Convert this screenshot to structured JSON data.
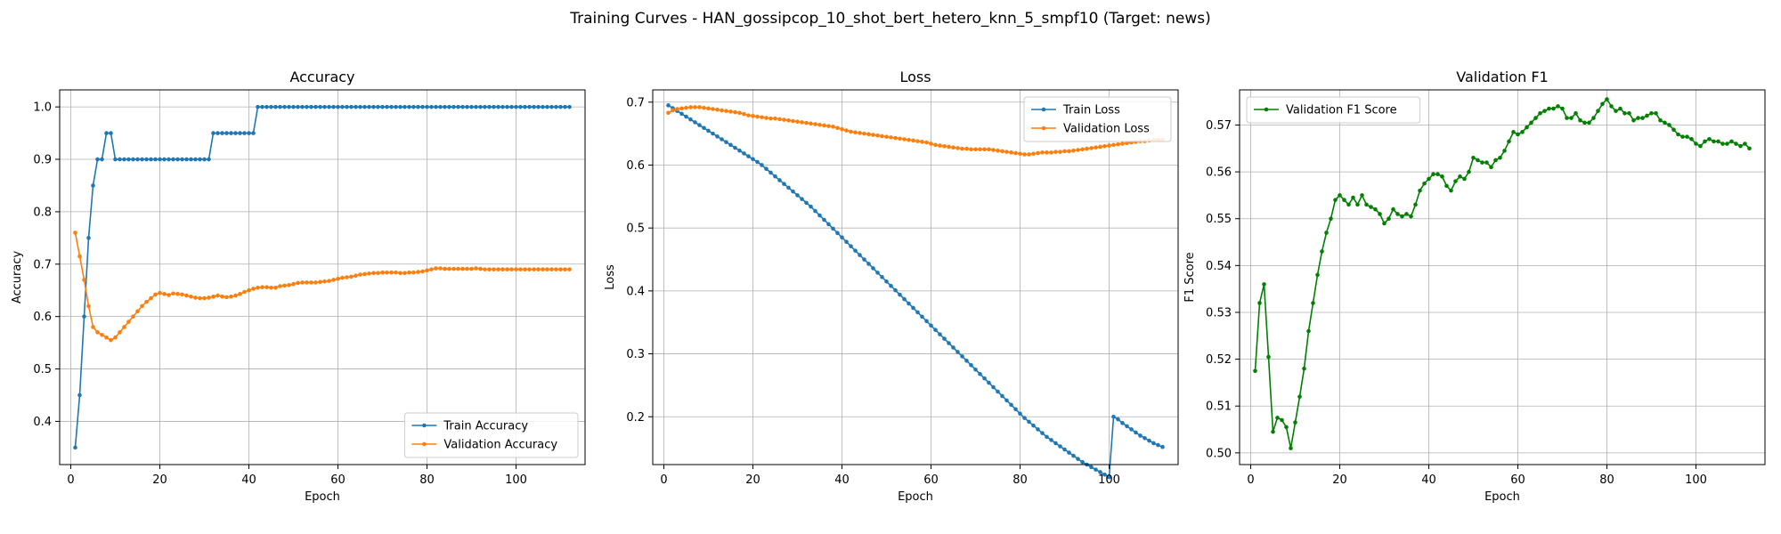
{
  "figure": {
    "suptitle": "Training Curves - HAN_gossipcop_10_shot_bert_hetero_knn_5_smpf10 (Target: news)"
  },
  "chart_data": [
    {
      "type": "line",
      "title": "Accuracy",
      "xlabel": "Epoch",
      "ylabel": "Accuracy",
      "xlim": [
        -2.5,
        115.5
      ],
      "ylim": [
        0.3175,
        1.0325
      ],
      "xticks": [
        0,
        20,
        40,
        60,
        80,
        100
      ],
      "yticks": [
        0.4,
        0.5,
        0.6,
        0.7,
        0.8,
        0.9,
        1.0
      ],
      "ytick_format": "1",
      "grid": true,
      "legend": "lower right",
      "series": [
        {
          "name": "Train Accuracy",
          "color": "#1f77b4",
          "y": [
            0.35,
            0.45,
            0.6,
            0.75,
            0.85,
            0.9,
            0.9,
            0.95,
            0.95,
            0.9,
            0.9,
            0.9,
            0.9,
            0.9,
            0.9,
            0.9,
            0.9,
            0.9,
            0.9,
            0.9,
            0.9,
            0.9,
            0.9,
            0.9,
            0.9,
            0.9,
            0.9,
            0.9,
            0.9,
            0.9,
            0.9,
            0.95,
            0.95,
            0.95,
            0.95,
            0.95,
            0.95,
            0.95,
            0.95,
            0.95,
            0.95,
            1.0,
            1.0,
            1.0,
            1.0,
            1.0,
            1.0,
            1.0,
            1.0,
            1.0,
            1.0,
            1.0,
            1.0,
            1.0,
            1.0,
            1.0,
            1.0,
            1.0,
            1.0,
            1.0,
            1.0,
            1.0,
            1.0,
            1.0,
            1.0,
            1.0,
            1.0,
            1.0,
            1.0,
            1.0,
            1.0,
            1.0,
            1.0,
            1.0,
            1.0,
            1.0,
            1.0,
            1.0,
            1.0,
            1.0,
            1.0,
            1.0,
            1.0,
            1.0,
            1.0,
            1.0,
            1.0,
            1.0,
            1.0,
            1.0,
            1.0,
            1.0,
            1.0,
            1.0,
            1.0,
            1.0,
            1.0,
            1.0,
            1.0,
            1.0,
            1.0,
            1.0,
            1.0,
            1.0,
            1.0,
            1.0,
            1.0,
            1.0,
            1.0,
            1.0,
            1.0,
            1.0
          ]
        },
        {
          "name": "Validation Accuracy",
          "color": "#ff7f0e",
          "y": [
            0.76,
            0.715,
            0.67,
            0.62,
            0.58,
            0.57,
            0.565,
            0.56,
            0.555,
            0.56,
            0.57,
            0.58,
            0.59,
            0.6,
            0.61,
            0.62,
            0.628,
            0.635,
            0.642,
            0.645,
            0.643,
            0.641,
            0.644,
            0.643,
            0.642,
            0.64,
            0.638,
            0.636,
            0.635,
            0.635,
            0.636,
            0.638,
            0.64,
            0.638,
            0.637,
            0.638,
            0.64,
            0.643,
            0.647,
            0.65,
            0.653,
            0.655,
            0.656,
            0.656,
            0.655,
            0.655,
            0.658,
            0.659,
            0.66,
            0.662,
            0.664,
            0.665,
            0.665,
            0.665,
            0.665,
            0.666,
            0.667,
            0.668,
            0.67,
            0.672,
            0.674,
            0.675,
            0.676,
            0.678,
            0.68,
            0.681,
            0.682,
            0.683,
            0.683,
            0.684,
            0.684,
            0.684,
            0.684,
            0.683,
            0.683,
            0.684,
            0.684,
            0.685,
            0.686,
            0.688,
            0.69,
            0.692,
            0.692,
            0.691,
            0.691,
            0.691,
            0.691,
            0.691,
            0.691,
            0.691,
            0.692,
            0.691,
            0.69,
            0.69,
            0.69,
            0.69,
            0.69,
            0.69,
            0.69,
            0.69,
            0.69,
            0.69,
            0.69,
            0.69,
            0.69,
            0.69,
            0.69,
            0.69,
            0.69,
            0.69,
            0.69,
            0.69
          ]
        }
      ]
    },
    {
      "type": "line",
      "title": "Loss",
      "xlabel": "Epoch",
      "ylabel": "Loss",
      "xlim": [
        -2.5,
        115.5
      ],
      "ylim": [
        0.124,
        0.7195
      ],
      "xticks": [
        0,
        20,
        40,
        60,
        80,
        100
      ],
      "yticks": [
        0.2,
        0.3,
        0.4,
        0.5,
        0.6,
        0.7
      ],
      "ytick_format": "1",
      "grid": true,
      "legend": "upper right",
      "series": [
        {
          "name": "Train Loss",
          "color": "#1f77b4",
          "y": [
            0.695,
            0.6905,
            0.686,
            0.6815,
            0.677,
            0.6725,
            0.668,
            0.6635,
            0.659,
            0.6545,
            0.65,
            0.6455,
            0.641,
            0.6365,
            0.632,
            0.6275,
            0.623,
            0.6185,
            0.614,
            0.6095,
            0.605,
            0.6,
            0.594,
            0.588,
            0.582,
            0.576,
            0.57,
            0.564,
            0.558,
            0.552,
            0.546,
            0.54,
            0.534,
            0.527,
            0.52,
            0.513,
            0.506,
            0.499,
            0.492,
            0.485,
            0.478,
            0.471,
            0.464,
            0.457,
            0.45,
            0.443,
            0.436,
            0.429,
            0.422,
            0.415,
            0.408,
            0.401,
            0.394,
            0.387,
            0.38,
            0.373,
            0.366,
            0.359,
            0.352,
            0.345,
            0.338,
            0.331,
            0.324,
            0.317,
            0.31,
            0.303,
            0.296,
            0.289,
            0.282,
            0.275,
            0.268,
            0.261,
            0.254,
            0.247,
            0.24,
            0.233,
            0.226,
            0.219,
            0.212,
            0.205,
            0.198,
            0.192,
            0.186,
            0.18,
            0.174,
            0.168,
            0.163,
            0.158,
            0.153,
            0.148,
            0.143,
            0.138,
            0.133,
            0.128,
            0.124,
            0.12,
            0.116,
            0.112,
            0.108,
            0.104,
            0.2,
            0.196,
            0.19,
            0.185,
            0.18,
            0.175,
            0.17,
            0.166,
            0.162,
            0.158,
            0.155,
            0.152
          ]
        },
        {
          "name": "Validation Loss",
          "color": "#ff7f0e",
          "y": [
            0.683,
            0.687,
            0.689,
            0.69,
            0.691,
            0.692,
            0.692,
            0.692,
            0.691,
            0.69,
            0.689,
            0.688,
            0.687,
            0.686,
            0.685,
            0.684,
            0.683,
            0.681,
            0.679,
            0.678,
            0.677,
            0.676,
            0.675,
            0.674,
            0.674,
            0.673,
            0.672,
            0.671,
            0.67,
            0.669,
            0.668,
            0.667,
            0.666,
            0.665,
            0.664,
            0.663,
            0.662,
            0.661,
            0.659,
            0.657,
            0.655,
            0.653,
            0.652,
            0.651,
            0.65,
            0.649,
            0.648,
            0.647,
            0.646,
            0.645,
            0.644,
            0.643,
            0.642,
            0.641,
            0.64,
            0.639,
            0.638,
            0.637,
            0.636,
            0.634,
            0.632,
            0.631,
            0.63,
            0.629,
            0.628,
            0.627,
            0.626,
            0.626,
            0.625,
            0.625,
            0.625,
            0.625,
            0.625,
            0.624,
            0.623,
            0.622,
            0.621,
            0.62,
            0.619,
            0.618,
            0.617,
            0.617,
            0.618,
            0.619,
            0.62,
            0.62,
            0.62,
            0.621,
            0.621,
            0.622,
            0.622,
            0.623,
            0.624,
            0.625,
            0.626,
            0.627,
            0.628,
            0.629,
            0.63,
            0.631,
            0.632,
            0.633,
            0.634,
            0.635,
            0.636,
            0.637,
            0.638,
            0.638,
            0.639,
            0.64,
            0.64,
            0.64
          ]
        }
      ]
    },
    {
      "type": "line",
      "title": "Validation F1",
      "xlabel": "Epoch",
      "ylabel": "F1 Score",
      "xlim": [
        -2.5,
        115.5
      ],
      "ylim": [
        0.4975,
        0.5775
      ],
      "xticks": [
        0,
        20,
        40,
        60,
        80,
        100
      ],
      "yticks": [
        0.5,
        0.51,
        0.52,
        0.53,
        0.54,
        0.55,
        0.56,
        0.57
      ],
      "ytick_format": "2",
      "grid": true,
      "legend": "upper left",
      "series": [
        {
          "name": "Validation F1 Score",
          "color": "#008000",
          "y": [
            0.5175,
            0.532,
            0.536,
            0.5205,
            0.5045,
            0.5075,
            0.507,
            0.5055,
            0.501,
            0.5065,
            0.512,
            0.518,
            0.526,
            0.532,
            0.538,
            0.543,
            0.547,
            0.55,
            0.554,
            0.555,
            0.554,
            0.553,
            0.5545,
            0.553,
            0.555,
            0.553,
            0.5525,
            0.552,
            0.551,
            0.549,
            0.55,
            0.552,
            0.551,
            0.5505,
            0.551,
            0.5505,
            0.553,
            0.556,
            0.5575,
            0.5585,
            0.5595,
            0.5595,
            0.559,
            0.557,
            0.556,
            0.558,
            0.559,
            0.5585,
            0.56,
            0.563,
            0.5625,
            0.562,
            0.562,
            0.561,
            0.5625,
            0.563,
            0.5645,
            0.5665,
            0.5685,
            0.568,
            0.5685,
            0.5695,
            0.5705,
            0.5715,
            0.5725,
            0.573,
            0.5735,
            0.5735,
            0.574,
            0.5735,
            0.5715,
            0.5715,
            0.5725,
            0.571,
            0.5705,
            0.5705,
            0.5715,
            0.573,
            0.5745,
            0.5755,
            0.574,
            0.573,
            0.5735,
            0.5725,
            0.5725,
            0.571,
            0.5715,
            0.5715,
            0.572,
            0.5725,
            0.5725,
            0.571,
            0.5705,
            0.57,
            0.569,
            0.568,
            0.5675,
            0.5675,
            0.567,
            0.566,
            0.5655,
            0.5665,
            0.567,
            0.5665,
            0.5665,
            0.566,
            0.566,
            0.5665,
            0.566,
            0.5655,
            0.566,
            0.565
          ]
        }
      ]
    }
  ]
}
